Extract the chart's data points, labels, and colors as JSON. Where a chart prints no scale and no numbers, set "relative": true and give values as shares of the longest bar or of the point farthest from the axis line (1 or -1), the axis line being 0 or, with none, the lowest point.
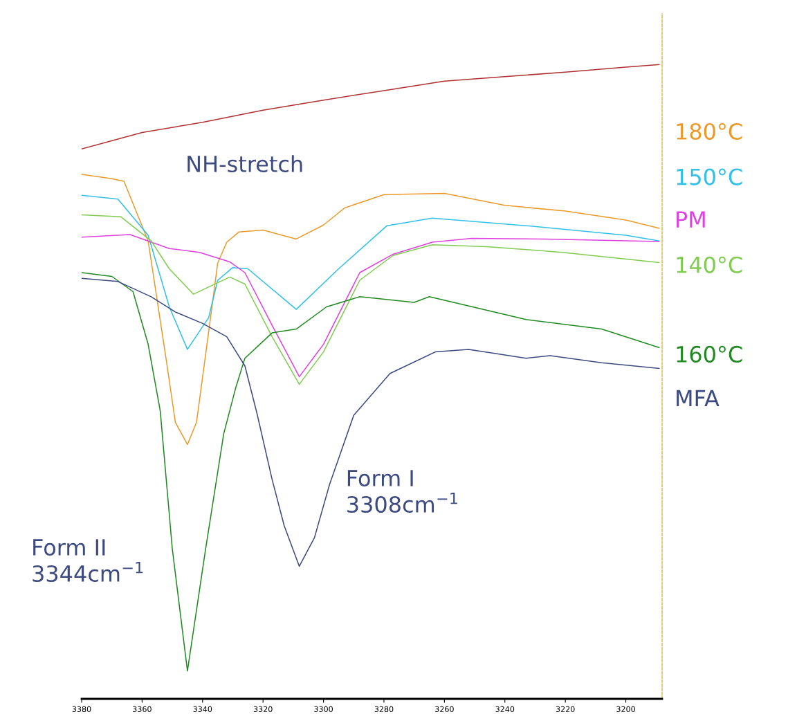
{
  "chart_data": {
    "type": "line",
    "relative": true,
    "xlim": [
      3380,
      3188
    ],
    "xticks": [
      3380,
      3360,
      3340,
      3320,
      3300,
      3280,
      3260,
      3240,
      3220,
      3200
    ],
    "grid": false,
    "legend": false,
    "marker": "none",
    "line_style": "solid",
    "tick_labels": "x",
    "annotations": [
      "NH-stretch",
      "Form I\n3308cm$^{−1}$",
      "Form II\n3344cm$^{−1}$"
    ],
    "series": [
      {
        "color": "#b03030",
        "x": [
          3380,
          3360,
          3340,
          3320,
          3300,
          3280,
          3260,
          3240,
          3220,
          3200,
          3189
        ],
        "values": [
          0.867,
          0.893,
          0.909,
          0.928,
          0.944,
          0.959,
          0.974,
          0.981,
          0.988,
          0.996,
          1.0
        ]
      },
      {
        "name": "180°C",
        "color": "#eb9a2a",
        "x": [
          3380,
          3370,
          3366,
          3358,
          3352,
          3349,
          3345,
          3342,
          3338,
          3335,
          3332,
          3328,
          3320,
          3309,
          3300,
          3293,
          3280,
          3260,
          3240,
          3220,
          3200,
          3189
        ],
        "values": [
          0.827,
          0.82,
          0.816,
          0.722,
          0.534,
          0.436,
          0.401,
          0.436,
          0.578,
          0.687,
          0.72,
          0.736,
          0.739,
          0.725,
          0.747,
          0.774,
          0.795,
          0.797,
          0.778,
          0.769,
          0.755,
          0.742
        ]
      },
      {
        "name": "150°C",
        "color": "#30c0e8",
        "x": [
          3380,
          3368,
          3358,
          3351,
          3345,
          3338,
          3335,
          3330,
          3325,
          3309,
          3295,
          3279,
          3264,
          3233,
          3200,
          3189
        ],
        "values": [
          0.794,
          0.788,
          0.731,
          0.618,
          0.551,
          0.601,
          0.66,
          0.68,
          0.678,
          0.614,
          0.678,
          0.746,
          0.758,
          0.746,
          0.731,
          0.722
        ]
      },
      {
        "name": "PM",
        "color": "#e040e0",
        "x": [
          3380,
          3364,
          3351,
          3341,
          3331,
          3326,
          3317,
          3308,
          3300,
          3288,
          3277,
          3264,
          3251,
          3227,
          3189
        ],
        "values": [
          0.728,
          0.732,
          0.71,
          0.704,
          0.689,
          0.672,
          0.589,
          0.508,
          0.559,
          0.672,
          0.701,
          0.72,
          0.726,
          0.725,
          0.721
        ]
      },
      {
        "name": "140°C",
        "color": "#80cc50",
        "x": [
          3380,
          3367,
          3357,
          3351,
          3343,
          3331,
          3326,
          3317,
          3308,
          3300,
          3288,
          3277,
          3264,
          3246,
          3221,
          3189
        ],
        "values": [
          0.763,
          0.76,
          0.722,
          0.678,
          0.638,
          0.665,
          0.654,
          0.571,
          0.496,
          0.547,
          0.66,
          0.699,
          0.716,
          0.713,
          0.704,
          0.688
        ]
      },
      {
        "name": "160°C",
        "color": "#208a20",
        "x": [
          3380,
          3370,
          3363,
          3358,
          3354,
          3350,
          3345,
          3339,
          3333,
          3329,
          3326,
          3317,
          3309,
          3299,
          3288,
          3270,
          3265,
          3233,
          3208,
          3189
        ],
        "values": [
          0.672,
          0.666,
          0.642,
          0.559,
          0.454,
          0.236,
          0.044,
          0.236,
          0.418,
          0.491,
          0.537,
          0.577,
          0.583,
          0.618,
          0.634,
          0.625,
          0.634,
          0.598,
          0.583,
          0.554
        ]
      },
      {
        "name": "MFA",
        "color": "#3d4a80",
        "x": [
          3380,
          3368,
          3357,
          3349,
          3340,
          3332,
          3326,
          3322,
          3317,
          3313,
          3308,
          3303,
          3298,
          3290,
          3278,
          3263,
          3252,
          3233,
          3225,
          3208,
          3189
        ],
        "values": [
          0.663,
          0.658,
          0.634,
          0.61,
          0.592,
          0.571,
          0.525,
          0.45,
          0.346,
          0.273,
          0.209,
          0.254,
          0.338,
          0.447,
          0.513,
          0.547,
          0.551,
          0.537,
          0.541,
          0.53,
          0.521
        ]
      }
    ]
  }
}
